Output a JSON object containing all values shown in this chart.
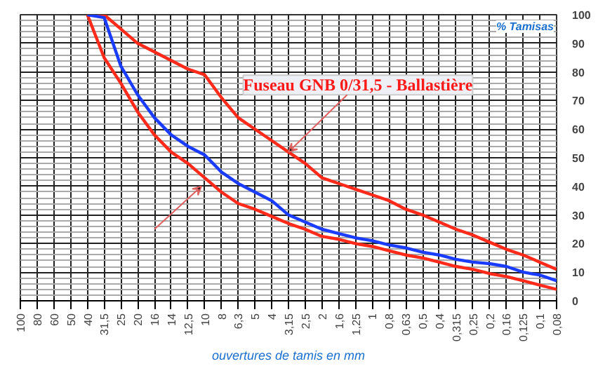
{
  "chart_data": {
    "type": "line",
    "xlabel": "ouvertures de tamis en mm",
    "ylabel": "% Tamisas",
    "categories": [
      "100",
      "80",
      "60",
      "50",
      "40",
      "31,5",
      "25",
      "20",
      "16",
      "14",
      "12,5",
      "10",
      "8",
      "6,3",
      "5",
      "4",
      "3,15",
      "2,5",
      "2",
      "1,6",
      "1,25",
      "1",
      "0,8",
      "0,63",
      "0,5",
      "0,4",
      "0,315",
      "0,25",
      "0,2",
      "0,16",
      "0,125",
      "0,1",
      "0,08"
    ],
    "series": [
      {
        "color": "#ff2a1a",
        "values": [
          null,
          null,
          null,
          null,
          100,
          100,
          95,
          90,
          87,
          84,
          81,
          79,
          71,
          64,
          60,
          56,
          52,
          48,
          43,
          41,
          39,
          37,
          35,
          32,
          30,
          27.5,
          25,
          23,
          20.5,
          18,
          16,
          13.5,
          11
        ]
      },
      {
        "color": "#ff2a1a",
        "values": [
          null,
          null,
          null,
          null,
          100,
          85,
          76,
          66,
          58,
          52,
          48,
          43,
          38,
          34,
          32,
          29.5,
          27,
          25,
          22.5,
          21.5,
          20,
          19,
          17.5,
          16,
          15,
          13.5,
          12,
          11,
          9.5,
          8.5,
          7,
          5.5,
          4
        ]
      },
      {
        "color": "#1a3cff",
        "values": [
          null,
          null,
          null,
          null,
          100,
          99,
          82,
          72,
          64,
          58,
          54,
          51,
          45,
          41,
          38,
          35,
          30,
          27.5,
          25,
          23.5,
          22,
          21,
          19.5,
          18.5,
          17,
          16,
          14.5,
          13.5,
          13,
          12,
          10,
          9,
          7
        ]
      }
    ],
    "ylim": [
      0,
      100
    ],
    "yticks": [
      0,
      10,
      20,
      30,
      40,
      50,
      60,
      70,
      80,
      90,
      100
    ],
    "grid": true,
    "annotations": [
      {
        "text": "Fuseau GNB 0/31,5 - Ballastière",
        "x": "3,15",
        "y": 52
      }
    ]
  }
}
